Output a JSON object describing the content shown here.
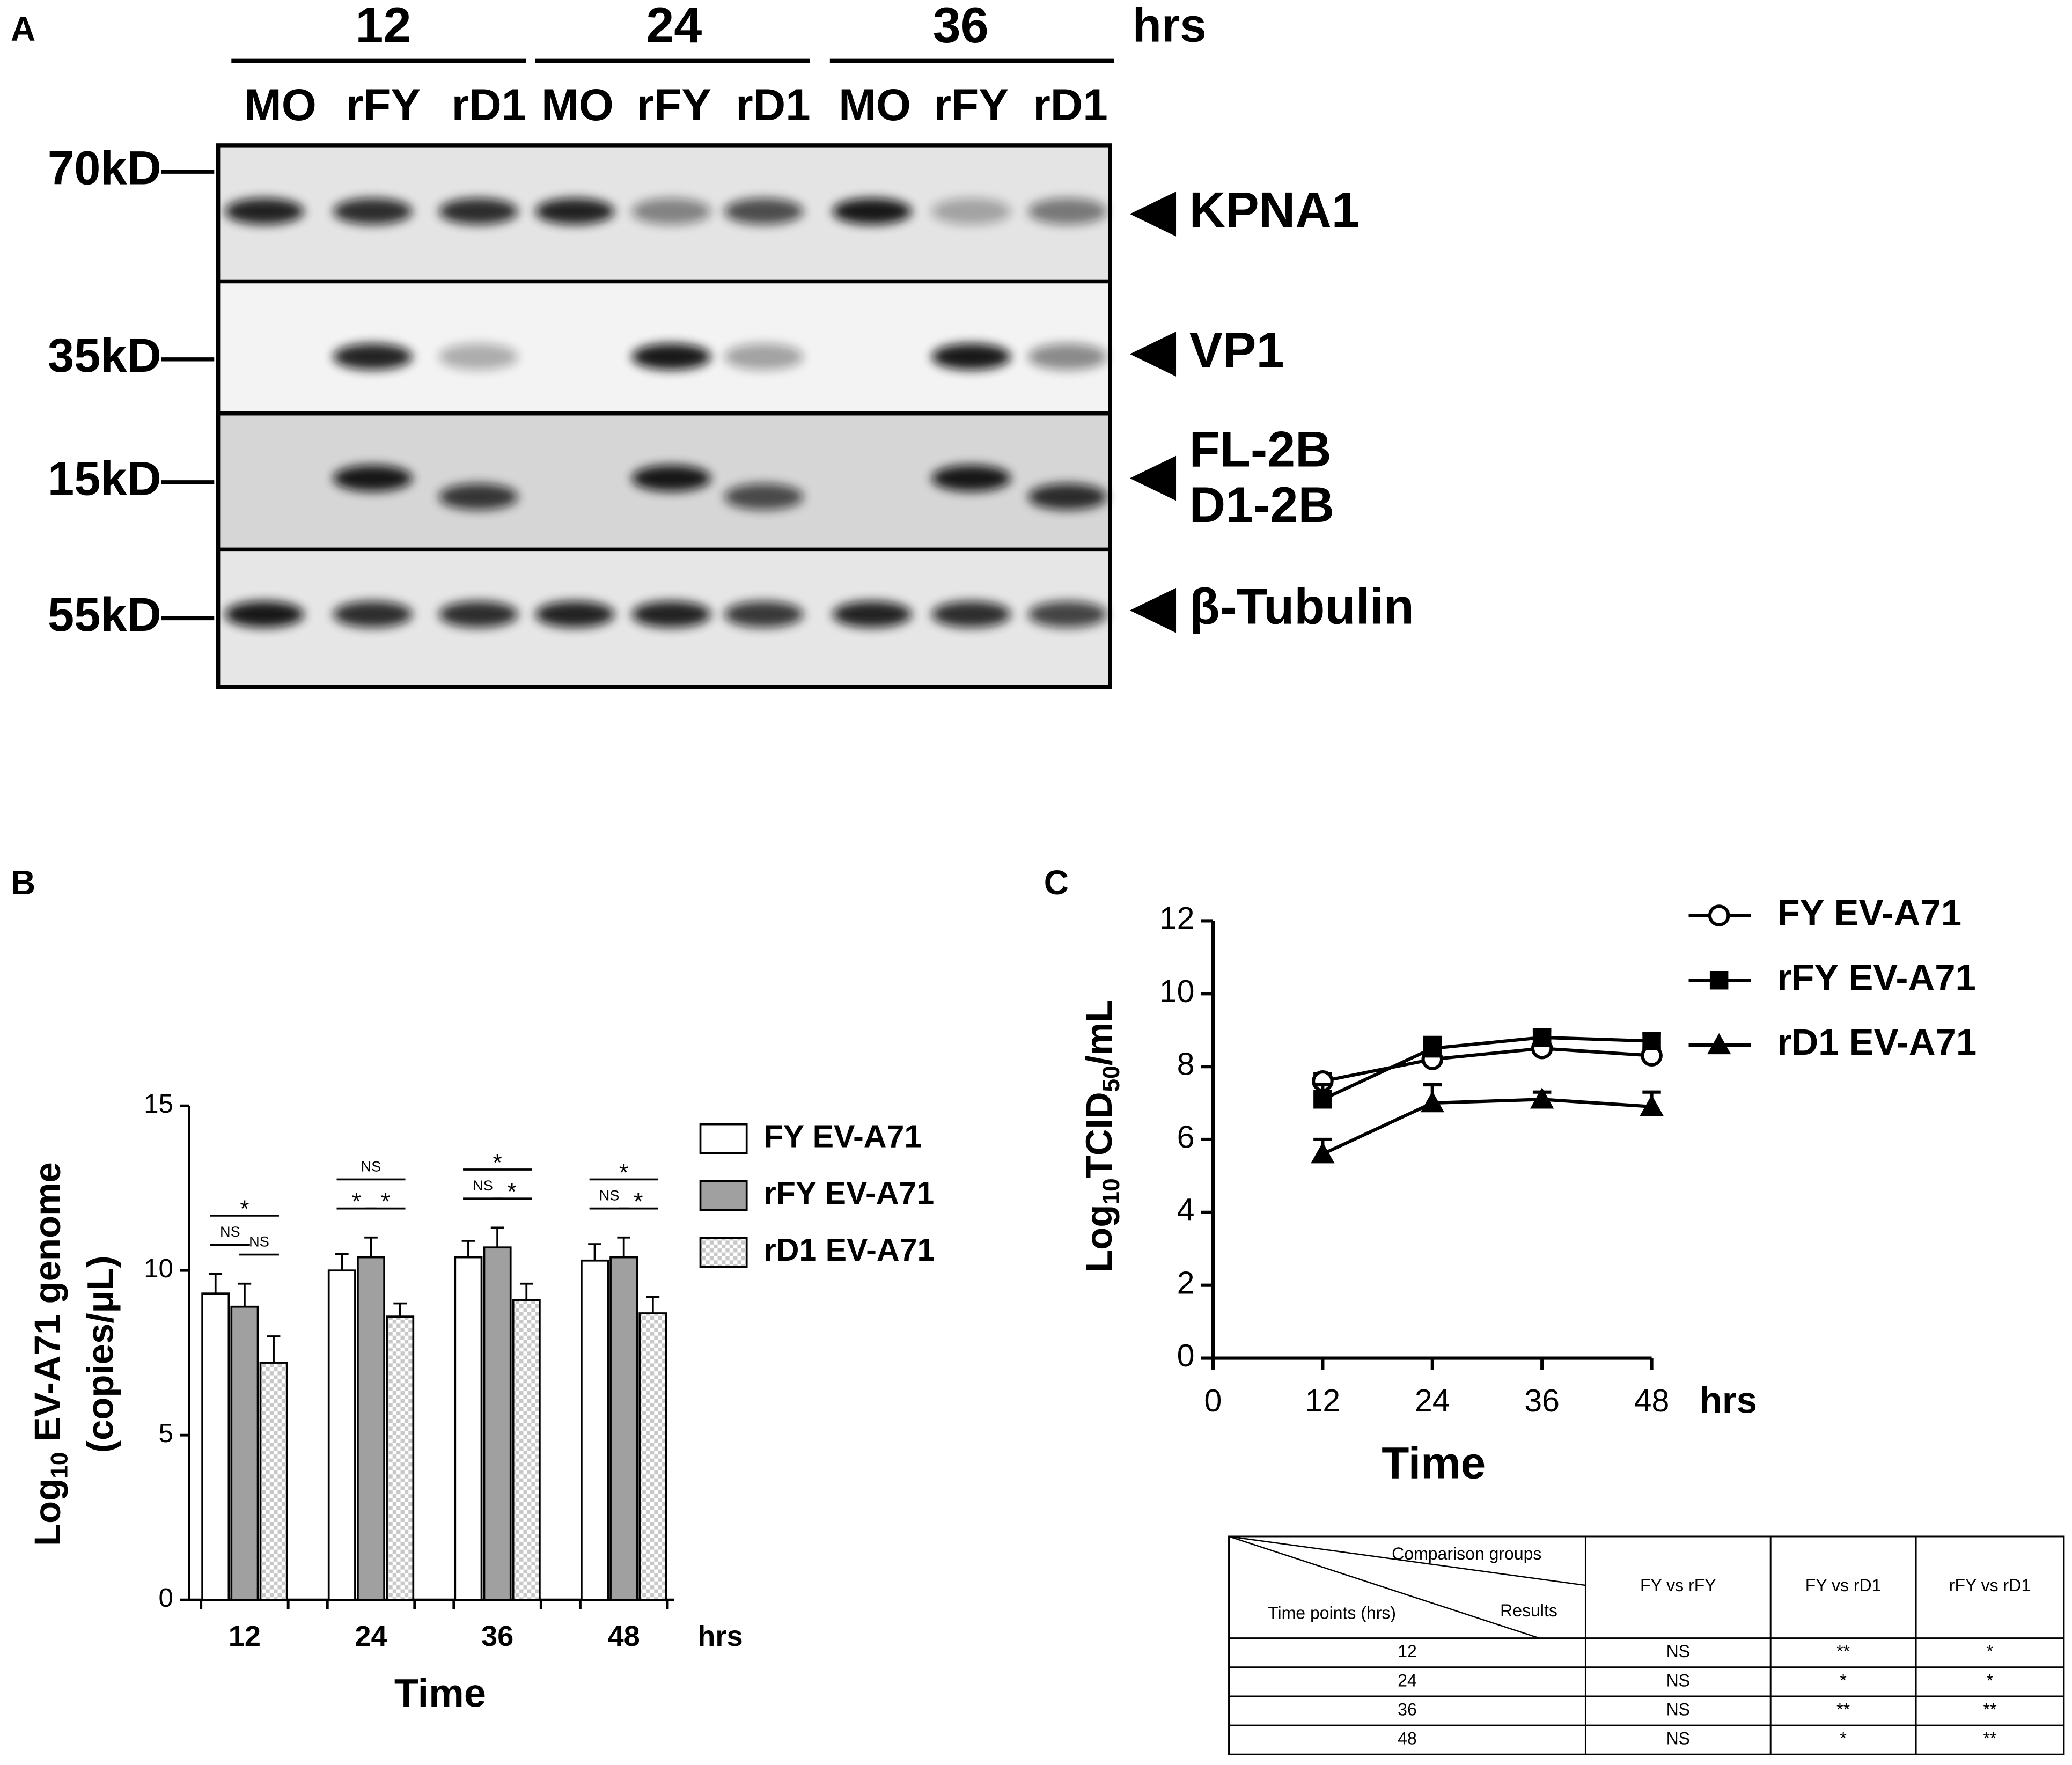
{
  "panel_labels": [
    "A",
    "B",
    "C"
  ],
  "blot": {
    "time_labels": [
      "12",
      "24",
      "36"
    ],
    "time_unit": "hrs",
    "lanes": [
      "MO",
      "rFY",
      "rD1",
      "MO",
      "rFY",
      "rD1",
      "MO",
      "rFY",
      "rD1"
    ],
    "markers": [
      "70kD",
      "35kD",
      "15kD",
      "55kD"
    ],
    "bands": [
      "KPNA1",
      "VP1",
      "FL-2B",
      "D1-2B",
      "β-Tubulin"
    ]
  },
  "chart_data": [
    {
      "type": "bar",
      "y_label": {
        "prefix": "Log",
        "subscript": "10",
        "suffix": " EV-A71 genome",
        "line2": "(copies/μL)"
      },
      "x_label": "Time",
      "x_unit": "hrs",
      "categories": [
        "12",
        "24",
        "36",
        "48"
      ],
      "series": [
        {
          "name": "FY EV-A71",
          "color": "#ffffff",
          "values": [
            9.3,
            10.0,
            10.4,
            10.3
          ],
          "errors": [
            0.6,
            0.5,
            0.5,
            0.5
          ]
        },
        {
          "name": "rFY EV-A71",
          "color": "#a0a0a0",
          "values": [
            8.9,
            10.4,
            10.7,
            10.4
          ],
          "errors": [
            0.7,
            0.6,
            0.6,
            0.6
          ]
        },
        {
          "name": "rD1 EV-A71",
          "color": "#c8c8c8",
          "pattern": "checker",
          "values": [
            7.2,
            8.6,
            9.1,
            8.7
          ],
          "errors": [
            0.8,
            0.4,
            0.5,
            0.5
          ]
        }
      ],
      "significance": {
        "FY vs rD1": [
          "*",
          "NS",
          "*",
          "*"
        ],
        "FY vs rFY": [
          "NS",
          "*",
          "NS",
          "NS"
        ],
        "rFY vs rD1": [
          "NS",
          "*",
          "*",
          "*"
        ]
      },
      "ylim": [
        0,
        15
      ],
      "yticks": [
        0,
        5,
        10,
        15
      ],
      "grid": false,
      "legend": "right"
    },
    {
      "type": "line",
      "y_label": {
        "prefix": "Log",
        "subscript": "10",
        "middle": "TCID",
        "subscript2": "50",
        "suffix": "/mL"
      },
      "x_label": "Time",
      "x_unit": "hrs",
      "x": [
        12,
        24,
        36,
        48
      ],
      "series": [
        {
          "name": "FY EV-A71",
          "color": "#000000",
          "marker": "circle",
          "values": [
            7.6,
            8.2,
            8.5,
            8.3
          ],
          "errors": [
            0.2,
            0.2,
            0.2,
            0.2
          ]
        },
        {
          "name": "rFY EV-A71",
          "color": "#000000",
          "marker": "square",
          "values": [
            7.1,
            8.5,
            8.8,
            8.7
          ],
          "errors": [
            0.4,
            0.3,
            0.2,
            0.2
          ]
        },
        {
          "name": "rD1 EV-A71",
          "color": "#000000",
          "marker": "triangle",
          "values": [
            5.6,
            7.0,
            7.1,
            6.9
          ],
          "errors": [
            0.4,
            0.5,
            0.2,
            0.4
          ]
        }
      ],
      "xlim": [
        0,
        48
      ],
      "xticks": [
        0,
        12,
        24,
        36,
        48
      ],
      "ylim": [
        0,
        12
      ],
      "yticks": [
        0,
        2,
        4,
        6,
        8,
        10,
        12
      ],
      "grid": false,
      "legend": "top-right"
    }
  ],
  "table": {
    "corner": {
      "top": "Comparison groups",
      "left": "Time points (hrs)",
      "right": "Results"
    },
    "columns": [
      "FY vs rFY",
      "FY vs rD1",
      "rFY vs rD1"
    ],
    "rows": [
      [
        "12",
        "NS",
        "**",
        "*"
      ],
      [
        "24",
        "NS",
        "*",
        "*"
      ],
      [
        "36",
        "NS",
        "**",
        "**"
      ],
      [
        "48",
        "NS",
        "*",
        "**"
      ]
    ]
  }
}
